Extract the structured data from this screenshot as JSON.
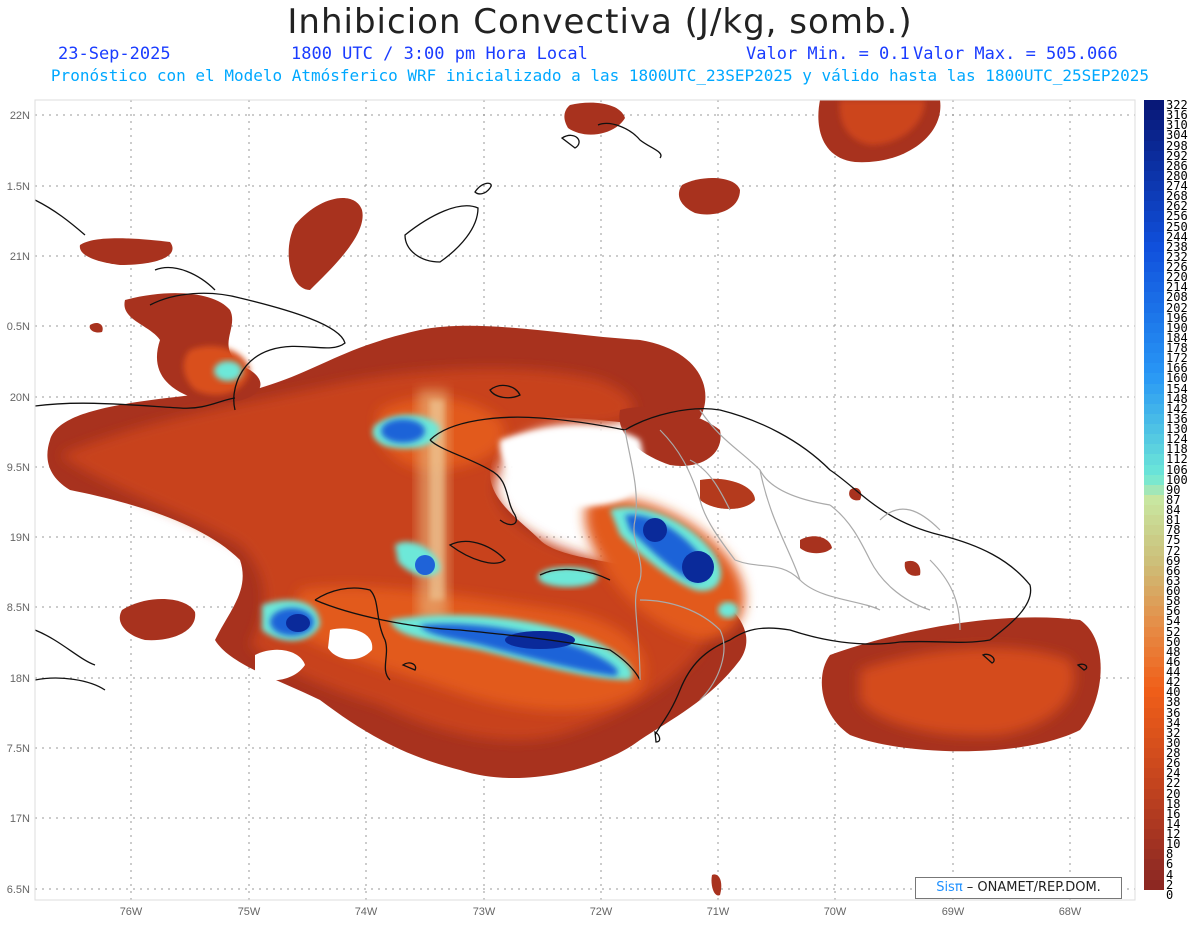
{
  "header": {
    "title": "Inhibicion Convectiva (J/kg, somb.)",
    "date": "23-Sep-2025",
    "time": "1800 UTC / 3:00 pm Hora Local",
    "valmin": "Valor Min. = 0.1",
    "valmax": "Valor Max. = 505.066",
    "subtitle": "Pronóstico con el Modelo Atmósferico WRF inicializado a las 1800UTC_23SEP2025 y válido hasta las 1800UTC_25SEP2025"
  },
  "axes": {
    "lon_labels": [
      "76W",
      "75W",
      "74W",
      "73W",
      "72W",
      "71W",
      "70W",
      "69W",
      "68W"
    ],
    "lat_labels": [
      "22N",
      "1.5N",
      "21N",
      "0.5N",
      "20N",
      "9.5N",
      "19N",
      "8.5N",
      "18N",
      "7.5N",
      "17N",
      "6.5N"
    ]
  },
  "colorbar": {
    "labels": [
      "322",
      "316",
      "310",
      "304",
      "298",
      "292",
      "286",
      "280",
      "274",
      "268",
      "262",
      "256",
      "250",
      "244",
      "238",
      "232",
      "226",
      "220",
      "214",
      "208",
      "202",
      "196",
      "190",
      "184",
      "178",
      "172",
      "166",
      "160",
      "154",
      "148",
      "142",
      "136",
      "130",
      "124",
      "118",
      "112",
      "106",
      "100",
      "90",
      "87",
      "84",
      "81",
      "78",
      "75",
      "72",
      "69",
      "66",
      "63",
      "60",
      "58",
      "56",
      "54",
      "52",
      "50",
      "48",
      "46",
      "44",
      "42",
      "40",
      "38",
      "36",
      "34",
      "32",
      "30",
      "28",
      "26",
      "24",
      "22",
      "20",
      "18",
      "16",
      "14",
      "12",
      "10",
      "8",
      "6",
      "4",
      "2",
      "0"
    ]
  },
  "credit": {
    "brand": "Sisπ",
    "text": " – ONAMET/REP.DOM."
  },
  "colors": {
    "low": "#8b2a22",
    "mid": "#e0561a",
    "high": "#0a2a9a",
    "cyan": "#6de8d8"
  }
}
